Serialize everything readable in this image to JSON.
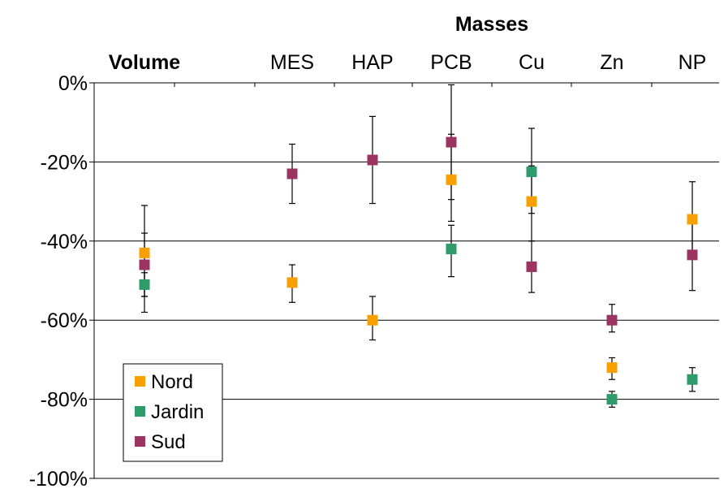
{
  "chart_data": {
    "type": "scatter",
    "group_title": "Masses",
    "categories": [
      "Volume",
      "MES",
      "HAP",
      "PCB",
      "Cu",
      "Zn",
      "NP"
    ],
    "bold_categories": [
      "Volume"
    ],
    "y_ticks": [
      "0%",
      "-20%",
      "-40%",
      "-60%",
      "-80%",
      "-100%"
    ],
    "ylim": [
      -100,
      0
    ],
    "grid": true,
    "legend_position": "bottom-left",
    "series": [
      {
        "name": "Nord",
        "color": "#f7a000",
        "points": [
          {
            "category": "Volume",
            "value": -43,
            "low": -58,
            "high": -38
          },
          {
            "category": "MES",
            "value": -50.5,
            "low": -55.5,
            "high": -46
          },
          {
            "category": "HAP",
            "value": -60,
            "low": -65,
            "high": -54
          },
          {
            "category": "PCB",
            "value": -24.5,
            "low": -35,
            "high": -13
          },
          {
            "category": "Cu",
            "value": -30,
            "low": -40,
            "high": -21
          },
          {
            "category": "Zn",
            "value": -72,
            "low": -75,
            "high": -69.5
          },
          {
            "category": "NP",
            "value": -34.5,
            "low": -44.5,
            "high": -25
          }
        ]
      },
      {
        "name": "Jardin",
        "color": "#2e9b6a",
        "points": [
          {
            "category": "Volume",
            "value": -51,
            "low": -54,
            "high": -48
          },
          {
            "category": "PCB",
            "value": -42,
            "low": -49,
            "high": -36
          },
          {
            "category": "Cu",
            "value": -22.5,
            "low": -33,
            "high": -11.5
          },
          {
            "category": "Zn",
            "value": -80,
            "low": -82,
            "high": -78
          },
          {
            "category": "NP",
            "value": -75,
            "low": -78,
            "high": -72
          }
        ]
      },
      {
        "name": "Sud",
        "color": "#9b3462",
        "points": [
          {
            "category": "Volume",
            "value": -46,
            "low": -54,
            "high": -31
          },
          {
            "category": "MES",
            "value": -23,
            "low": -30.5,
            "high": -15.5
          },
          {
            "category": "HAP",
            "value": -19.5,
            "low": -30.5,
            "high": -8.5
          },
          {
            "category": "PCB",
            "value": -15,
            "low": -29.5,
            "high": -0.5
          },
          {
            "category": "Cu",
            "value": -46.5,
            "low": -53,
            "high": -40
          },
          {
            "category": "Zn",
            "value": -60,
            "low": -63,
            "high": -56
          },
          {
            "category": "NP",
            "value": -43.5,
            "low": -52.5,
            "high": -34.5
          }
        ]
      }
    ]
  }
}
